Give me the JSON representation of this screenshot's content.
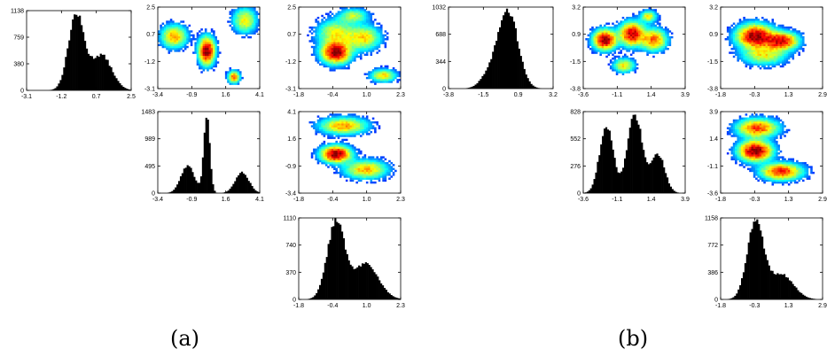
{
  "captions": [
    "(a)",
    "(b)"
  ],
  "chart_data": [
    {
      "panel": "(a)",
      "type": "histogram",
      "cell": "row1-col1",
      "xticks": [
        "-3.1",
        "-1.2",
        "0.7",
        "2.5"
      ],
      "yticks": [
        "0",
        "380",
        "759",
        "1138"
      ],
      "xlim": [
        -3.1,
        2.5
      ],
      "ylim": [
        0,
        1138
      ],
      "components": [
        {
          "mu": -0.45,
          "sd": 0.42,
          "w": 0.62
        },
        {
          "mu": 0.9,
          "sd": 0.55,
          "w": 0.38
        }
      ]
    },
    {
      "panel": "(a)",
      "type": "heatmap",
      "cell": "row1-col2",
      "xticks": [
        "-3.4",
        "-0.9",
        "1.6",
        "4.1"
      ],
      "yticks": [
        "-3.1",
        "-1.2",
        "0.7",
        "2.5"
      ],
      "xlim": [
        -3.4,
        4.1
      ],
      "ylim": [
        -3.1,
        2.5
      ],
      "clusters": [
        {
          "x": -2.2,
          "y": 0.5,
          "sx": 0.55,
          "sy": 0.45,
          "w": 0.28
        },
        {
          "x": 0.2,
          "y": -0.5,
          "sx": 0.35,
          "sy": 0.55,
          "w": 0.42
        },
        {
          "x": 3.0,
          "y": 1.6,
          "sx": 0.5,
          "sy": 0.5,
          "w": 0.22
        },
        {
          "x": 2.2,
          "y": -2.3,
          "sx": 0.25,
          "sy": 0.25,
          "w": 0.08
        }
      ]
    },
    {
      "panel": "(a)",
      "type": "heatmap",
      "cell": "row1-col3",
      "xticks": [
        "-1.8",
        "-0.4",
        "1.0",
        "2.3"
      ],
      "yticks": [
        "-3.1",
        "-1.2",
        "0.7",
        "2.5"
      ],
      "xlim": [
        -1.8,
        2.3
      ],
      "ylim": [
        -3.1,
        2.5
      ],
      "clusters": [
        {
          "x": -0.3,
          "y": -0.6,
          "sx": 0.35,
          "sy": 0.45,
          "w": 0.38
        },
        {
          "x": -0.3,
          "y": 0.7,
          "sx": 0.45,
          "sy": 0.55,
          "w": 0.24
        },
        {
          "x": 0.8,
          "y": 0.4,
          "sx": 0.4,
          "sy": 0.5,
          "w": 0.22
        },
        {
          "x": 0.4,
          "y": 1.9,
          "sx": 0.35,
          "sy": 0.3,
          "w": 0.08
        },
        {
          "x": 1.6,
          "y": -2.2,
          "sx": 0.3,
          "sy": 0.25,
          "w": 0.08
        }
      ]
    },
    {
      "panel": "(a)",
      "type": "histogram",
      "cell": "row2-col2",
      "xticks": [
        "-3.4",
        "-0.9",
        "1.6",
        "4.1"
      ],
      "yticks": [
        "0",
        "495",
        "989",
        "1483"
      ],
      "xlim": [
        -3.4,
        4.1
      ],
      "ylim": [
        0,
        1483
      ],
      "components": [
        {
          "mu": -1.2,
          "sd": 0.5,
          "w": 0.33
        },
        {
          "mu": 0.2,
          "sd": 0.22,
          "w": 0.42
        },
        {
          "mu": 2.8,
          "sd": 0.5,
          "w": 0.25
        }
      ]
    },
    {
      "panel": "(a)",
      "type": "heatmap",
      "cell": "row2-col3",
      "xticks": [
        "-1.8",
        "-0.4",
        "1.0",
        "2.3"
      ],
      "yticks": [
        "-3.4",
        "-0.9",
        "1.6",
        "4.1"
      ],
      "xlim": [
        -1.8,
        2.3
      ],
      "ylim": [
        -3.4,
        4.1
      ],
      "clusters": [
        {
          "x": -0.3,
          "y": 0.2,
          "sx": 0.35,
          "sy": 0.45,
          "w": 0.38
        },
        {
          "x": 0.0,
          "y": 2.8,
          "sx": 0.55,
          "sy": 0.45,
          "w": 0.32
        },
        {
          "x": 0.9,
          "y": -1.2,
          "sx": 0.5,
          "sy": 0.5,
          "w": 0.3
        }
      ]
    },
    {
      "panel": "(a)",
      "type": "histogram",
      "cell": "row3-col3",
      "xticks": [
        "-1.8",
        "-0.4",
        "1.0",
        "2.3"
      ],
      "yticks": [
        "0",
        "370",
        "740",
        "1110"
      ],
      "xlim": [
        -1.8,
        2.3
      ],
      "ylim": [
        0,
        1110
      ],
      "components": [
        {
          "mu": -0.3,
          "sd": 0.35,
          "w": 0.6
        },
        {
          "mu": 0.9,
          "sd": 0.5,
          "w": 0.4
        }
      ]
    },
    {
      "panel": "(b)",
      "type": "histogram",
      "cell": "row1-col1",
      "xticks": [
        "-3.8",
        "-1.5",
        "0.9",
        "3.2"
      ],
      "yticks": [
        "0",
        "344",
        "688",
        "1032"
      ],
      "xlim": [
        -3.8,
        3.2
      ],
      "ylim": [
        0,
        1032
      ],
      "components": [
        {
          "mu": 0.2,
          "sd": 0.65,
          "w": 0.85
        },
        {
          "mu": -1.0,
          "sd": 0.6,
          "w": 0.15
        }
      ]
    },
    {
      "panel": "(b)",
      "type": "heatmap",
      "cell": "row1-col2",
      "xticks": [
        "-3.6",
        "-1.1",
        "1.4",
        "3.9"
      ],
      "yticks": [
        "-3.8",
        "-1.5",
        "0.9",
        "3.2"
      ],
      "xlim": [
        -3.6,
        3.9
      ],
      "ylim": [
        -3.8,
        3.2
      ],
      "clusters": [
        {
          "x": -2.0,
          "y": 0.4,
          "sx": 0.5,
          "sy": 0.5,
          "w": 0.3
        },
        {
          "x": 0.0,
          "y": 0.9,
          "sx": 0.55,
          "sy": 0.6,
          "w": 0.35
        },
        {
          "x": 1.6,
          "y": 0.4,
          "sx": 0.55,
          "sy": 0.55,
          "w": 0.22
        },
        {
          "x": -0.6,
          "y": -1.8,
          "sx": 0.45,
          "sy": 0.35,
          "w": 0.08
        },
        {
          "x": 1.2,
          "y": 2.4,
          "sx": 0.35,
          "sy": 0.3,
          "w": 0.05
        }
      ]
    },
    {
      "panel": "(b)",
      "type": "heatmap",
      "cell": "row1-col3",
      "xticks": [
        "-1.8",
        "-0.3",
        "1.3",
        "2.9"
      ],
      "yticks": [
        "-3.8",
        "-1.5",
        "0.9",
        "3.2"
      ],
      "xlim": [
        -1.8,
        2.9
      ],
      "ylim": [
        -3.8,
        3.2
      ],
      "clusters": [
        {
          "x": -0.2,
          "y": 0.7,
          "sx": 0.5,
          "sy": 0.6,
          "w": 0.5
        },
        {
          "x": 1.0,
          "y": 0.3,
          "sx": 0.45,
          "sy": 0.45,
          "w": 0.3
        },
        {
          "x": 0.2,
          "y": -0.9,
          "sx": 0.6,
          "sy": 0.5,
          "w": 0.2
        }
      ]
    },
    {
      "panel": "(b)",
      "type": "histogram",
      "cell": "row2-col2",
      "xticks": [
        "-3.6",
        "-1.1",
        "1.4",
        "3.9"
      ],
      "yticks": [
        "0",
        "276",
        "552",
        "828"
      ],
      "xlim": [
        -3.6,
        3.9
      ],
      "ylim": [
        0,
        828
      ],
      "components": [
        {
          "mu": -1.9,
          "sd": 0.5,
          "w": 0.35
        },
        {
          "mu": 0.2,
          "sd": 0.55,
          "w": 0.45
        },
        {
          "mu": 1.9,
          "sd": 0.5,
          "w": 0.2
        }
      ]
    },
    {
      "panel": "(b)",
      "type": "heatmap",
      "cell": "row2-col3",
      "xticks": [
        "-1.8",
        "-0.3",
        "1.3",
        "2.9"
      ],
      "yticks": [
        "-3.6",
        "-1.1",
        "1.4",
        "3.9"
      ],
      "xlim": [
        -1.8,
        2.9
      ],
      "ylim": [
        -3.6,
        3.9
      ],
      "clusters": [
        {
          "x": -0.2,
          "y": 0.3,
          "sx": 0.45,
          "sy": 0.55,
          "w": 0.4
        },
        {
          "x": -0.1,
          "y": 2.4,
          "sx": 0.55,
          "sy": 0.5,
          "w": 0.3
        },
        {
          "x": 1.0,
          "y": -1.6,
          "sx": 0.55,
          "sy": 0.45,
          "w": 0.3
        }
      ]
    },
    {
      "panel": "(b)",
      "type": "histogram",
      "cell": "row3-col3",
      "xticks": [
        "-1.8",
        "-0.3",
        "1.3",
        "2.9"
      ],
      "yticks": [
        "0",
        "386",
        "772",
        "1158"
      ],
      "xlim": [
        -1.8,
        2.9
      ],
      "ylim": [
        0,
        1158
      ],
      "components": [
        {
          "mu": -0.2,
          "sd": 0.38,
          "w": 0.68
        },
        {
          "mu": 1.0,
          "sd": 0.55,
          "w": 0.32
        }
      ]
    }
  ]
}
